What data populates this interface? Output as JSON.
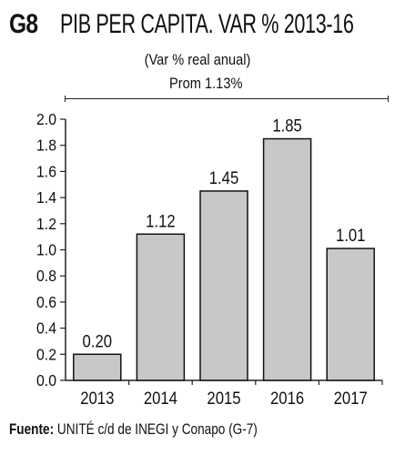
{
  "header": {
    "fig_number": "G8",
    "title": "PIB PER CAPITA. VAR % 2013-16",
    "subtitle": "(Var % real anual)",
    "average_label": "Prom 1.13%"
  },
  "source": {
    "label": "Fuente:",
    "text": "UNITÉ c/d de INEGI y Conapo (G-7)"
  },
  "chart_data": {
    "type": "bar",
    "title": "PIB PER CAPITA. VAR % 2013-16",
    "subtitle": "(Var % real anual)",
    "categories": [
      "2013",
      "2014",
      "2015",
      "2016",
      "2017"
    ],
    "values": [
      0.2,
      1.12,
      1.45,
      1.85,
      1.01
    ],
    "value_labels": [
      "0.20",
      "1.12",
      "1.45",
      "1.85",
      "1.01"
    ],
    "yticks": [
      "0.0",
      "0.2",
      "0.4",
      "0.6",
      "0.8",
      "1.0",
      "1.2",
      "1.4",
      "1.6",
      "1.8",
      "2.0"
    ],
    "ylim": [
      0,
      2.0
    ],
    "xlabel": "",
    "ylabel": "",
    "grid": false,
    "legend": "none",
    "average_annotation": "Prom 1.13%",
    "bar_color": "#c8c8c8",
    "bar_outline": "#111111"
  }
}
